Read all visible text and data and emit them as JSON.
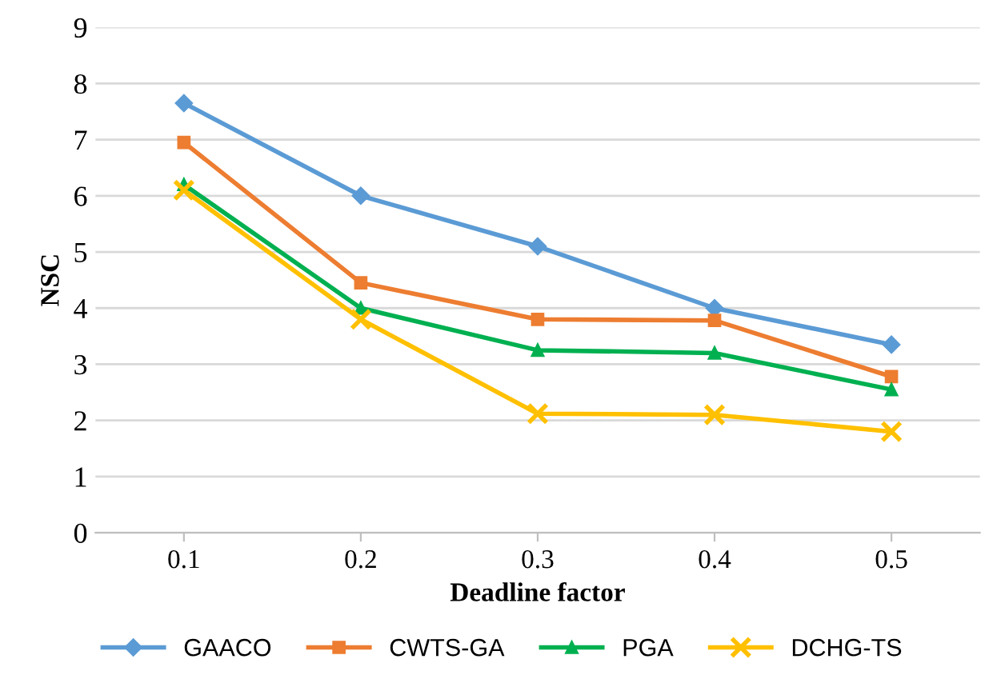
{
  "chart_data": {
    "type": "line",
    "xlabel": "Deadline factor",
    "ylabel": "NSC",
    "categories": [
      "0.1",
      "0.2",
      "0.3",
      "0.4",
      "0.5"
    ],
    "series": [
      {
        "name": "GAACO",
        "color": "#5b9bd5",
        "marker": "diamond",
        "values": [
          7.65,
          6.0,
          5.1,
          4.0,
          3.35
        ]
      },
      {
        "name": "CWTS-GA",
        "color": "#ed7d31",
        "marker": "square",
        "values": [
          6.95,
          4.45,
          3.8,
          3.78,
          2.78
        ]
      },
      {
        "name": "PGA",
        "color": "#00b050",
        "marker": "triangle",
        "values": [
          6.2,
          4.0,
          3.25,
          3.2,
          2.55
        ]
      },
      {
        "name": "DCHG-TS",
        "color": "#ffc000",
        "marker": "cross",
        "values": [
          6.1,
          3.8,
          2.12,
          2.1,
          1.8
        ]
      }
    ],
    "ylim": [
      0,
      9
    ],
    "yticks": [
      0,
      1,
      2,
      3,
      4,
      5,
      6,
      7,
      8,
      9
    ],
    "grid": "y",
    "legend": "bottom",
    "line_style": "solid"
  }
}
